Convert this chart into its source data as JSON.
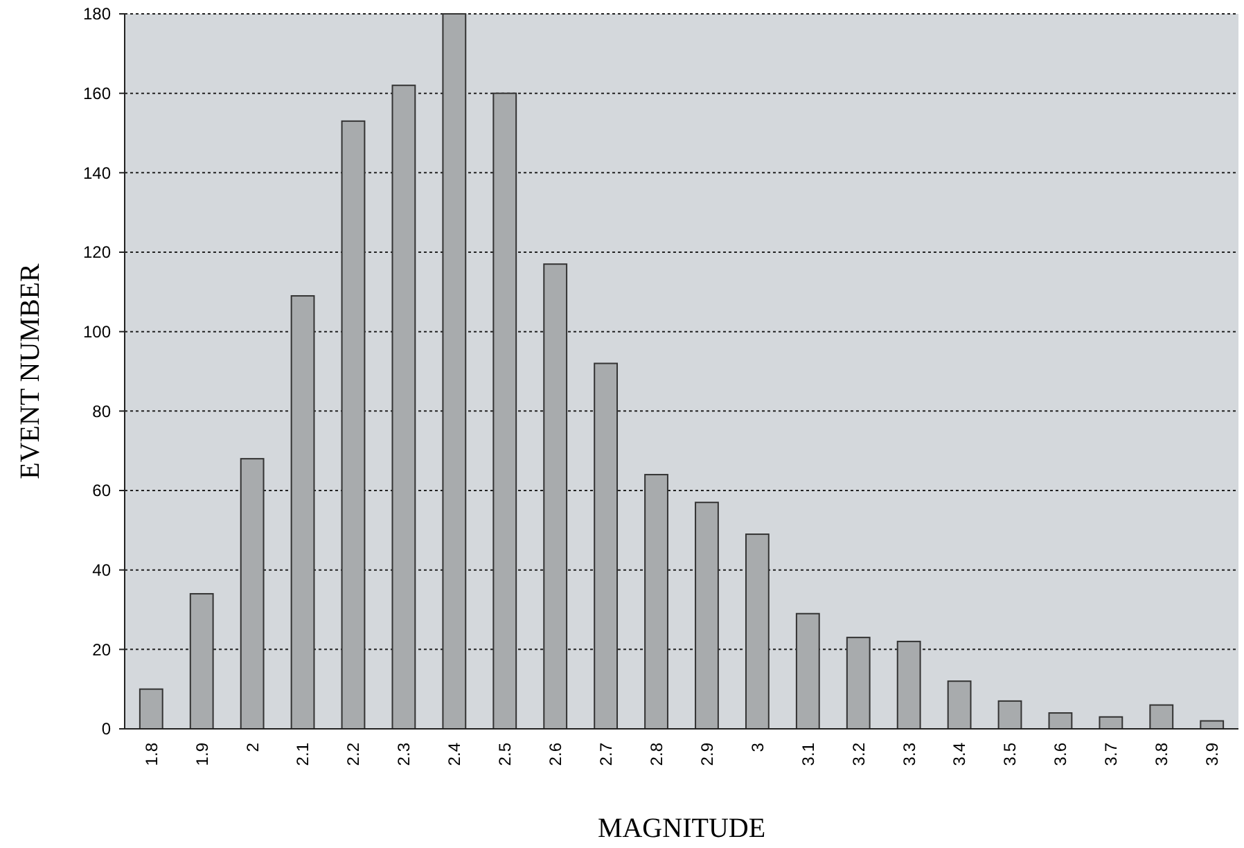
{
  "chart_data": {
    "type": "bar",
    "xlabel": "MAGNITUDE",
    "ylabel": "EVENT NUMBER",
    "categories": [
      "1.8",
      "1.9",
      "2",
      "2.1",
      "2.2",
      "2.3",
      "2.4",
      "2.5",
      "2.6",
      "2.7",
      "2.8",
      "2.9",
      "3",
      "3.1",
      "3.2",
      "3.3",
      "3.4",
      "3.5",
      "3.6",
      "3.7",
      "3.8",
      "3.9"
    ],
    "values": [
      10,
      34,
      68,
      109,
      153,
      162,
      180,
      160,
      117,
      92,
      64,
      57,
      49,
      29,
      23,
      22,
      12,
      7,
      4,
      3,
      6,
      2
    ],
    "color": "#a8abad",
    "ylim": [
      0,
      180
    ],
    "yticks": [
      0,
      20,
      40,
      60,
      80,
      100,
      120,
      140,
      160,
      180
    ],
    "grid": "y",
    "line_style": "dotted"
  }
}
